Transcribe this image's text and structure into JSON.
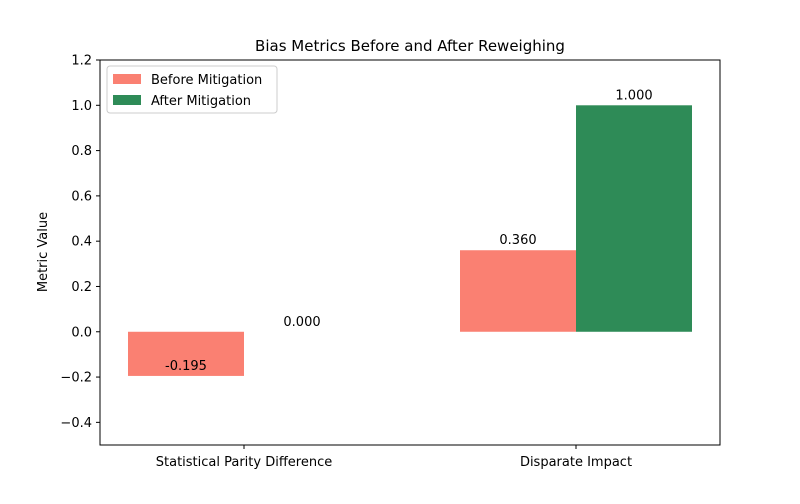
{
  "chart_data": {
    "type": "bar",
    "title": "Bias Metrics Before and After Reweighing",
    "xlabel": "",
    "ylabel": "Metric Value",
    "categories": [
      "Statistical Parity Difference",
      "Disparate Impact"
    ],
    "series": [
      {
        "name": "Before Mitigation",
        "values": [
          -0.195,
          0.36
        ],
        "labels": [
          "-0.195",
          "0.360"
        ],
        "color": "#fa8072"
      },
      {
        "name": "After Mitigation",
        "values": [
          0.0,
          1.0
        ],
        "labels": [
          "0.000",
          "1.000"
        ],
        "color": "#2e8b57"
      }
    ],
    "ylim": [
      -0.5,
      1.2
    ],
    "yticks": [
      "−0.4",
      "−0.2",
      "0.0",
      "0.2",
      "0.4",
      "0.6",
      "0.8",
      "1.0",
      "1.2"
    ],
    "grid": false,
    "legend_position": "top-left"
  }
}
